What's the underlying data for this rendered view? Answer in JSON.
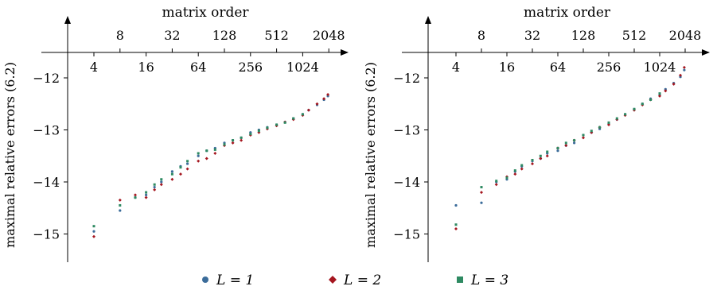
{
  "chart_data": [
    {
      "type": "scatter",
      "xlabel": "matrix order",
      "ylabel": "maximal relative errors (6.2)",
      "x_scale": "log2",
      "x_ticks_top": [
        "8",
        "32",
        "128",
        "512",
        "2048"
      ],
      "x_ticks_bottom": [
        "4",
        "16",
        "64",
        "256",
        "1024"
      ],
      "y_ticks": [
        "−12",
        "−13",
        "−14",
        "−15"
      ],
      "xlim": [
        2,
        3000
      ],
      "ylim": [
        -15.5,
        -11.5
      ],
      "series": [
        {
          "name": "L = 1",
          "points": [
            [
              4,
              -14.95
            ],
            [
              8,
              -14.55
            ],
            [
              12,
              -14.3
            ],
            [
              16,
              -14.25
            ],
            [
              20,
              -14.1
            ],
            [
              24,
              -14.0
            ],
            [
              32,
              -13.8
            ],
            [
              40,
              -13.7
            ],
            [
              48,
              -13.65
            ],
            [
              64,
              -13.5
            ],
            [
              80,
              -13.4
            ],
            [
              100,
              -13.35
            ],
            [
              128,
              -13.25
            ],
            [
              160,
              -13.2
            ],
            [
              200,
              -13.15
            ],
            [
              256,
              -13.05
            ],
            [
              320,
              -13.0
            ],
            [
              400,
              -12.95
            ],
            [
              512,
              -12.9
            ],
            [
              640,
              -12.85
            ],
            [
              800,
              -12.78
            ],
            [
              1024,
              -12.7
            ],
            [
              1200,
              -12.62
            ],
            [
              1500,
              -12.52
            ],
            [
              1800,
              -12.42
            ],
            [
              2000,
              -12.35
            ]
          ]
        },
        {
          "name": "L = 2",
          "points": [
            [
              4,
              -15.05
            ],
            [
              8,
              -14.35
            ],
            [
              12,
              -14.25
            ],
            [
              16,
              -14.3
            ],
            [
              20,
              -14.15
            ],
            [
              24,
              -14.05
            ],
            [
              32,
              -13.95
            ],
            [
              40,
              -13.85
            ],
            [
              48,
              -13.75
            ],
            [
              64,
              -13.6
            ],
            [
              80,
              -13.55
            ],
            [
              100,
              -13.45
            ],
            [
              128,
              -13.3
            ],
            [
              160,
              -13.25
            ],
            [
              200,
              -13.2
            ],
            [
              256,
              -13.1
            ],
            [
              320,
              -13.05
            ],
            [
              400,
              -12.98
            ],
            [
              512,
              -12.92
            ],
            [
              640,
              -12.85
            ],
            [
              800,
              -12.8
            ],
            [
              1024,
              -12.72
            ],
            [
              1200,
              -12.62
            ],
            [
              1500,
              -12.5
            ],
            [
              1800,
              -12.4
            ],
            [
              2000,
              -12.32
            ]
          ]
        },
        {
          "name": "L = 3",
          "points": [
            [
              4,
              -14.85
            ],
            [
              8,
              -14.45
            ],
            [
              12,
              -14.3
            ],
            [
              16,
              -14.2
            ],
            [
              20,
              -14.05
            ],
            [
              24,
              -13.95
            ],
            [
              32,
              -13.85
            ],
            [
              40,
              -13.72
            ],
            [
              48,
              -13.6
            ],
            [
              64,
              -13.45
            ],
            [
              80,
              -13.4
            ],
            [
              100,
              -13.38
            ],
            [
              128,
              -13.28
            ],
            [
              160,
              -13.2
            ],
            [
              200,
              -13.15
            ],
            [
              256,
              -13.08
            ],
            [
              320,
              -13.02
            ],
            [
              400,
              -12.96
            ],
            [
              512,
              -12.9
            ],
            [
              640,
              -12.86
            ],
            [
              800,
              -12.78
            ],
            [
              1024,
              -12.7
            ]
          ]
        }
      ]
    },
    {
      "type": "scatter",
      "xlabel": "matrix order",
      "ylabel": "maximal relative errors (6.2)",
      "x_scale": "log2",
      "x_ticks_top": [
        "8",
        "32",
        "128",
        "512",
        "2048"
      ],
      "x_ticks_bottom": [
        "4",
        "16",
        "64",
        "256",
        "1024"
      ],
      "y_ticks": [
        "−12",
        "−13",
        "−14",
        "−15"
      ],
      "xlim": [
        2,
        3000
      ],
      "ylim": [
        -15.5,
        -11.5
      ],
      "series": [
        {
          "name": "L = 1",
          "points": [
            [
              4,
              -14.45
            ],
            [
              8,
              -14.4
            ],
            [
              12,
              -14.0
            ],
            [
              16,
              -13.95
            ],
            [
              20,
              -13.8
            ],
            [
              24,
              -13.7
            ],
            [
              32,
              -13.6
            ],
            [
              40,
              -13.55
            ],
            [
              48,
              -13.45
            ],
            [
              64,
              -13.4
            ],
            [
              80,
              -13.3
            ],
            [
              100,
              -13.25
            ],
            [
              128,
              -13.1
            ],
            [
              160,
              -13.05
            ],
            [
              200,
              -12.98
            ],
            [
              256,
              -12.88
            ],
            [
              320,
              -12.8
            ],
            [
              400,
              -12.7
            ],
            [
              512,
              -12.6
            ],
            [
              640,
              -12.5
            ],
            [
              800,
              -12.4
            ],
            [
              1024,
              -12.32
            ],
            [
              1200,
              -12.22
            ],
            [
              1500,
              -12.1
            ],
            [
              1800,
              -11.98
            ],
            [
              2000,
              -11.85
            ]
          ]
        },
        {
          "name": "L = 2",
          "points": [
            [
              4,
              -14.9
            ],
            [
              8,
              -14.2
            ],
            [
              12,
              -14.05
            ],
            [
              16,
              -13.9
            ],
            [
              20,
              -13.85
            ],
            [
              24,
              -13.75
            ],
            [
              32,
              -13.65
            ],
            [
              40,
              -13.55
            ],
            [
              48,
              -13.5
            ],
            [
              64,
              -13.35
            ],
            [
              80,
              -13.3
            ],
            [
              100,
              -13.2
            ],
            [
              128,
              -13.15
            ],
            [
              160,
              -13.05
            ],
            [
              200,
              -12.95
            ],
            [
              256,
              -12.9
            ],
            [
              320,
              -12.8
            ],
            [
              400,
              -12.72
            ],
            [
              512,
              -12.62
            ],
            [
              640,
              -12.52
            ],
            [
              800,
              -12.42
            ],
            [
              1024,
              -12.35
            ],
            [
              1200,
              -12.25
            ],
            [
              1500,
              -12.12
            ],
            [
              1800,
              -11.95
            ],
            [
              2000,
              -11.8
            ]
          ]
        },
        {
          "name": "L = 3",
          "points": [
            [
              4,
              -14.82
            ],
            [
              8,
              -14.1
            ],
            [
              12,
              -13.98
            ],
            [
              16,
              -13.92
            ],
            [
              20,
              -13.78
            ],
            [
              24,
              -13.68
            ],
            [
              32,
              -13.58
            ],
            [
              40,
              -13.5
            ],
            [
              48,
              -13.42
            ],
            [
              64,
              -13.35
            ],
            [
              80,
              -13.25
            ],
            [
              100,
              -13.2
            ],
            [
              128,
              -13.1
            ],
            [
              160,
              -13.02
            ],
            [
              200,
              -12.95
            ],
            [
              256,
              -12.86
            ],
            [
              320,
              -12.78
            ],
            [
              400,
              -12.7
            ],
            [
              512,
              -12.6
            ],
            [
              640,
              -12.5
            ],
            [
              800,
              -12.42
            ],
            [
              1024,
              -12.3
            ]
          ]
        }
      ]
    }
  ],
  "legend": [
    {
      "label": "L = 1",
      "color": "#3b6c9a",
      "marker": "circle"
    },
    {
      "label": "L = 2",
      "color": "#a5161f",
      "marker": "diamond"
    },
    {
      "label": "L = 3",
      "color": "#2e8a62",
      "marker": "square"
    }
  ]
}
